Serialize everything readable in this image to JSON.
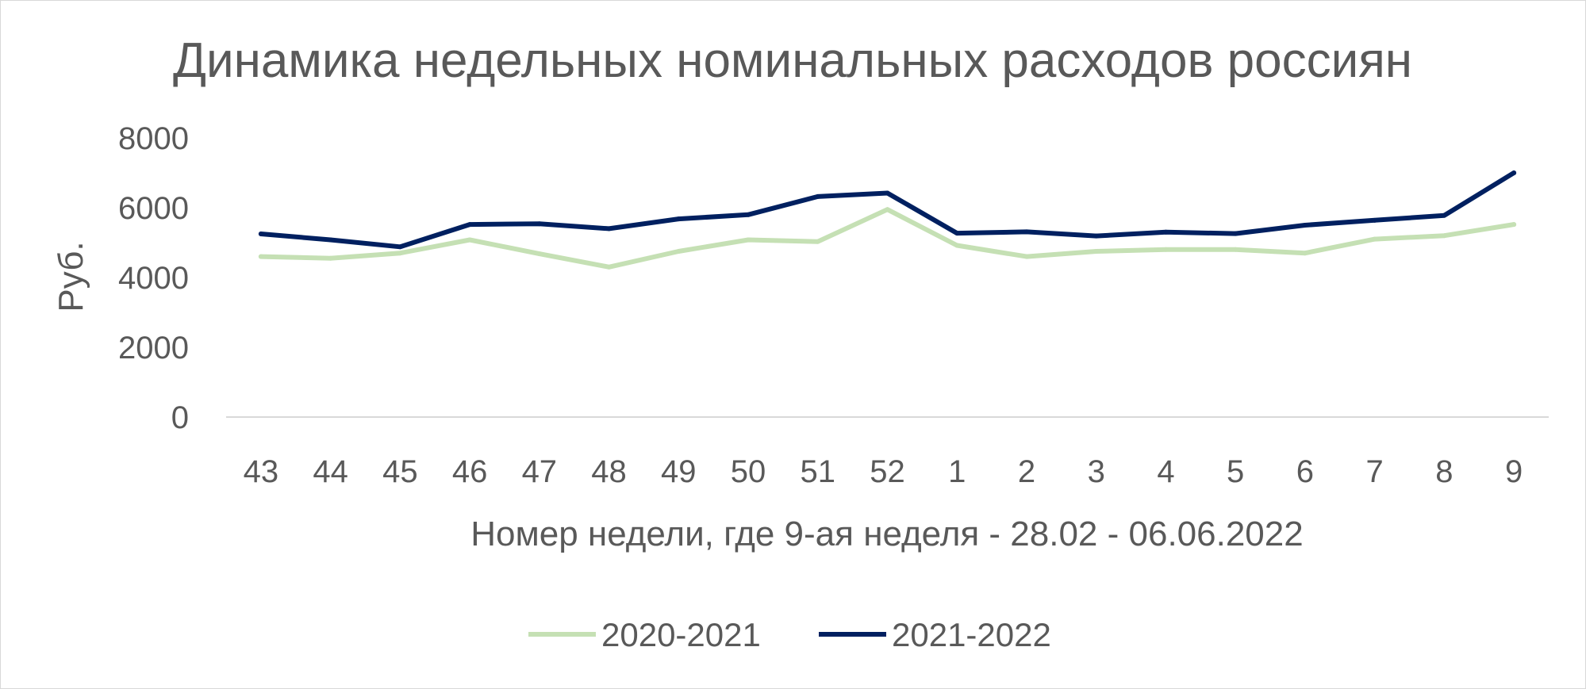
{
  "chart_data": {
    "type": "line",
    "title": "Динамика недельных номинальных расходов россиян",
    "xlabel": "Номер недели, где 9-ая неделя - 28.02 - 06.06.2022",
    "ylabel": "Руб.",
    "ylim": [
      0,
      8000
    ],
    "yticks": [
      "0",
      "2000",
      "4000",
      "6000",
      "8000"
    ],
    "categories": [
      "43",
      "44",
      "45",
      "46",
      "47",
      "48",
      "49",
      "50",
      "51",
      "52",
      "1",
      "2",
      "3",
      "4",
      "5",
      "6",
      "7",
      "8",
      "9"
    ],
    "grid": false,
    "legend_position": "bottom",
    "series": [
      {
        "name": "2020-2021",
        "color": "#c5e0b4",
        "values": [
          4600,
          4550,
          4700,
          5080,
          4680,
          4300,
          4750,
          5080,
          5030,
          5950,
          4920,
          4600,
          4750,
          4800,
          4800,
          4700,
          5100,
          5200,
          5520
        ]
      },
      {
        "name": "2021-2022",
        "color": "#002060",
        "values": [
          5250,
          5080,
          4880,
          5520,
          5540,
          5400,
          5680,
          5800,
          6320,
          6420,
          5270,
          5310,
          5190,
          5300,
          5260,
          5500,
          5640,
          5780,
          7000
        ]
      }
    ]
  }
}
